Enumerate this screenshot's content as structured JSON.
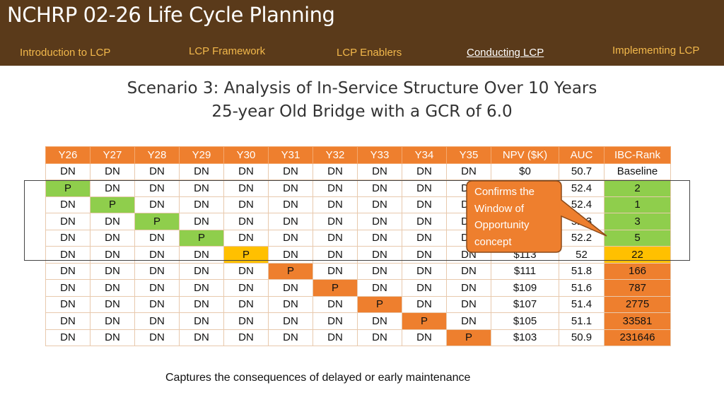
{
  "header": {
    "title": "NCHRP 02-26 Life Cycle Planning",
    "nav": [
      {
        "label": "Introduction to LCP",
        "active": false
      },
      {
        "label": "LCP  Framework",
        "active": false
      },
      {
        "label": "LCP Enablers",
        "active": false
      },
      {
        "label": "Conducting LCP",
        "active": true
      },
      {
        "label": "Implementing LCP",
        "active": false
      }
    ]
  },
  "slide": {
    "title_line1": "Scenario 3: Analysis of In-Service Structure Over 10 Years",
    "title_line2": "25-year Old Bridge with a GCR of 6.0"
  },
  "table": {
    "columns": [
      "Y26",
      "Y27",
      "Y28",
      "Y29",
      "Y30",
      "Y31",
      "Y32",
      "Y33",
      "Y34",
      "Y35",
      "NPV ($K)",
      "AUC",
      "IBC-Rank"
    ],
    "rows": [
      [
        "DN",
        "DN",
        "DN",
        "DN",
        "DN",
        "DN",
        "DN",
        "DN",
        "DN",
        "DN",
        "$0",
        "50.7",
        "Baseline"
      ],
      [
        "P",
        "DN",
        "DN",
        "DN",
        "DN",
        "DN",
        "DN",
        "DN",
        "DN",
        "DN",
        "",
        "52.4",
        "2"
      ],
      [
        "DN",
        "P",
        "DN",
        "DN",
        "DN",
        "DN",
        "DN",
        "DN",
        "DN",
        "DN",
        "",
        "52.4",
        "1"
      ],
      [
        "DN",
        "DN",
        "P",
        "DN",
        "DN",
        "DN",
        "DN",
        "DN",
        "DN",
        "DN",
        "",
        "52.3",
        "3"
      ],
      [
        "DN",
        "DN",
        "DN",
        "P",
        "DN",
        "DN",
        "DN",
        "DN",
        "DN",
        "DN",
        "",
        "52.2",
        "5"
      ],
      [
        "DN",
        "DN",
        "DN",
        "DN",
        "P",
        "DN",
        "DN",
        "DN",
        "DN",
        "DN",
        "$113",
        "52",
        "22"
      ],
      [
        "DN",
        "DN",
        "DN",
        "DN",
        "DN",
        "P",
        "DN",
        "DN",
        "DN",
        "DN",
        "$111",
        "51.8",
        "166"
      ],
      [
        "DN",
        "DN",
        "DN",
        "DN",
        "DN",
        "DN",
        "P",
        "DN",
        "DN",
        "DN",
        "$109",
        "51.6",
        "787"
      ],
      [
        "DN",
        "DN",
        "DN",
        "DN",
        "DN",
        "DN",
        "DN",
        "P",
        "DN",
        "DN",
        "$107",
        "51.4",
        "2775"
      ],
      [
        "DN",
        "DN",
        "DN",
        "DN",
        "DN",
        "DN",
        "DN",
        "DN",
        "P",
        "DN",
        "$105",
        "51.1",
        "33581"
      ],
      [
        "DN",
        "DN",
        "DN",
        "DN",
        "DN",
        "DN",
        "DN",
        "DN",
        "DN",
        "P",
        "$103",
        "50.9",
        "231646"
      ]
    ],
    "rank_colors": [
      "",
      "green",
      "green",
      "green",
      "green",
      "yellow",
      "orange",
      "orange",
      "orange",
      "orange",
      "orange"
    ],
    "p_colors": [
      "",
      "green",
      "green",
      "green",
      "green",
      "yellow",
      "orange",
      "orange",
      "orange",
      "orange",
      "orange"
    ]
  },
  "callout": {
    "lines": [
      "Confirms the",
      "Window of",
      "Opportunity",
      "concept"
    ],
    "fill_color": "#ee7f2e"
  },
  "footer": {
    "note": "Captures the consequences of delayed or early maintenance"
  },
  "colors": {
    "header_bg": "#5a3a1a",
    "nav_text": "#f2b84b",
    "table_header": "#ee7f2e",
    "green": "#8fce4c",
    "orange": "#ee7f2e",
    "yellow": "#ffc000"
  }
}
